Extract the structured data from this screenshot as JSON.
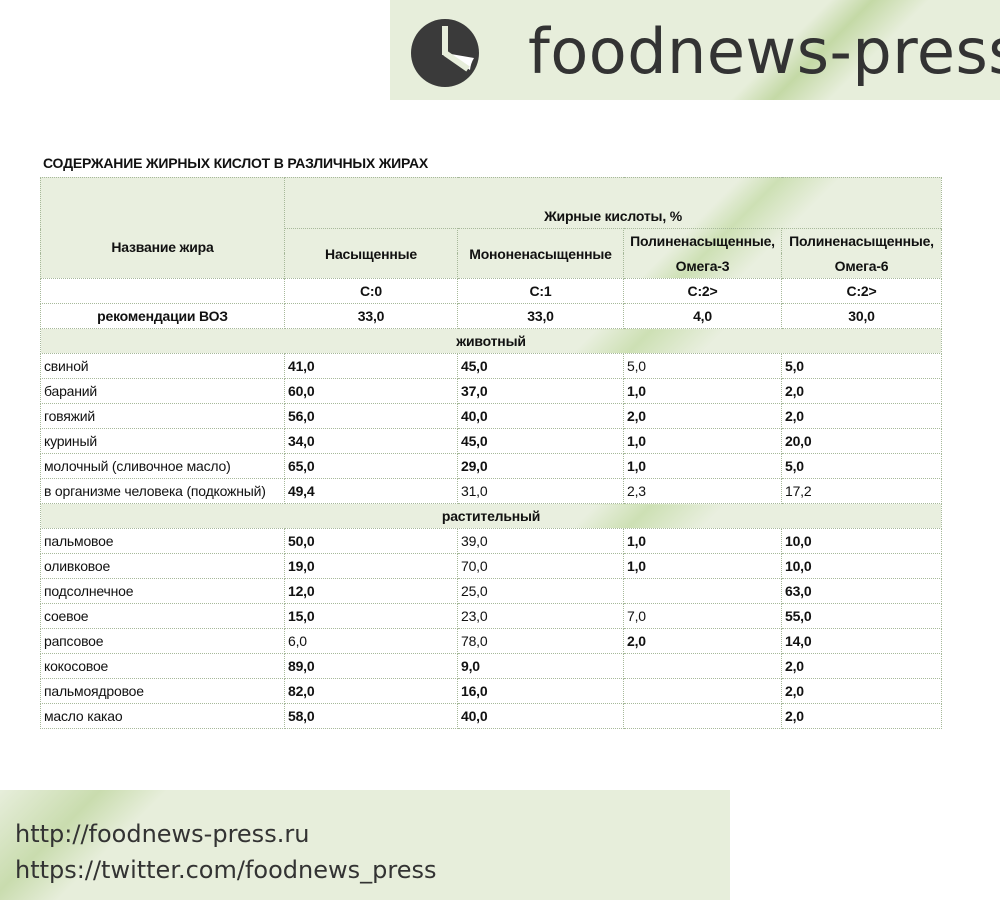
{
  "brand": {
    "name": "foodnews-press",
    "logo_icon": "pie-clock-icon",
    "logo_color": "#3a3a3a"
  },
  "document": {
    "title": "СОДЕРЖАНИЕ ЖИРНЫХ КИСЛОТ В РАЗЛИЧНЫХ ЖИРАХ"
  },
  "table": {
    "header": {
      "name_col": "Название жира",
      "group": "Жирные кислоты, %",
      "columns": [
        {
          "line1": "Насыщенные",
          "line2": "",
          "code": "C:0",
          "who": "33,0"
        },
        {
          "line1": "Мононенасыщенные",
          "line2": "",
          "code": "C:1",
          "who": "33,0"
        },
        {
          "line1": "Полиненасыщенные,",
          "line2": "Омега-3",
          "code": "C:2>",
          "who": "4,0"
        },
        {
          "line1": "Полиненасыщенные,",
          "line2": "Омега-6",
          "code": "C:2>",
          "who": "30,0"
        }
      ],
      "who_label": "рекомендации ВОЗ"
    },
    "sections": [
      {
        "name": "животный",
        "rows": [
          {
            "name": "свиной",
            "values": [
              "41,0",
              "45,0",
              "5,0",
              "5,0"
            ],
            "bold": [
              true,
              true,
              false,
              true
            ]
          },
          {
            "name": "бараний",
            "values": [
              "60,0",
              "37,0",
              "1,0",
              "2,0"
            ],
            "bold": [
              true,
              true,
              true,
              true
            ]
          },
          {
            "name": "говяжий",
            "values": [
              "56,0",
              "40,0",
              "2,0",
              "2,0"
            ],
            "bold": [
              true,
              true,
              true,
              true
            ]
          },
          {
            "name": "куриный",
            "values": [
              "34,0",
              "45,0",
              "1,0",
              "20,0"
            ],
            "bold": [
              true,
              true,
              true,
              true
            ]
          },
          {
            "name": "молочный (сливочное масло)",
            "values": [
              "65,0",
              "29,0",
              "1,0",
              "5,0"
            ],
            "bold": [
              true,
              true,
              true,
              true
            ]
          },
          {
            "name": "в организме человека  (подкожный)",
            "values": [
              "49,4",
              "31,0",
              "2,3",
              "17,2"
            ],
            "bold": [
              true,
              false,
              false,
              false
            ]
          }
        ]
      },
      {
        "name": "растительный",
        "rows": [
          {
            "name": "пальмовое",
            "values": [
              "50,0",
              "39,0",
              "1,0",
              "10,0"
            ],
            "bold": [
              true,
              false,
              true,
              true
            ]
          },
          {
            "name": "оливковое",
            "values": [
              "19,0",
              "70,0",
              "1,0",
              "10,0"
            ],
            "bold": [
              true,
              false,
              true,
              true
            ]
          },
          {
            "name": "подсолнечное",
            "values": [
              "12,0",
              "25,0",
              "",
              "63,0"
            ],
            "bold": [
              true,
              false,
              false,
              true
            ]
          },
          {
            "name": "соевое",
            "values": [
              "15,0",
              "23,0",
              "7,0",
              "55,0"
            ],
            "bold": [
              true,
              false,
              false,
              true
            ]
          },
          {
            "name": "рапсовое",
            "values": [
              "6,0",
              "78,0",
              "2,0",
              "14,0"
            ],
            "bold": [
              false,
              false,
              true,
              true
            ]
          },
          {
            "name": "кокосовое",
            "values": [
              "89,0",
              "9,0",
              "",
              "2,0"
            ],
            "bold": [
              true,
              true,
              false,
              true
            ]
          },
          {
            "name": "пальмоядровое",
            "values": [
              "82,0",
              "16,0",
              "",
              "2,0"
            ],
            "bold": [
              true,
              true,
              false,
              true
            ]
          },
          {
            "name": "масло какао",
            "values": [
              "58,0",
              "40,0",
              "",
              "2,0"
            ],
            "bold": [
              true,
              true,
              false,
              true
            ]
          }
        ]
      }
    ]
  },
  "footer": {
    "links": [
      "http://foodnews-press.ru",
      "https://twitter.com/foodnews_press"
    ]
  }
}
